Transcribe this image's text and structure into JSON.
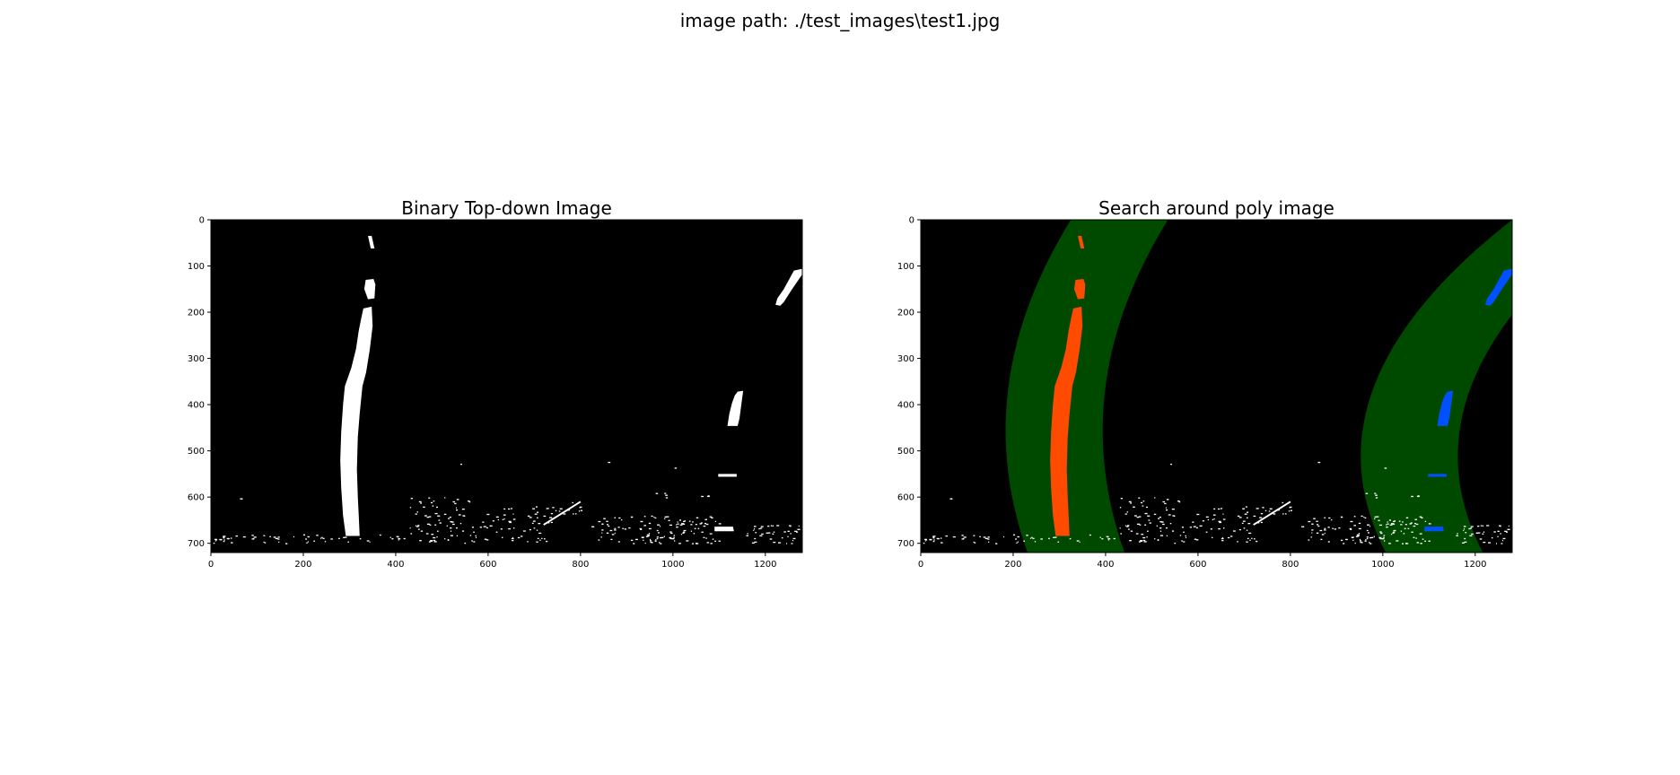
{
  "figure": {
    "suptitle": "image path: ./test_images\\test1.jpg"
  },
  "colors": {
    "background": "#000000",
    "lane_pixels": "#ffffff",
    "left_lane_pixels": "#ff4b00",
    "right_lane_pixels": "#0050ff",
    "search_region": "#004a00",
    "frame": "#000000",
    "figure_background": "#ffffff"
  },
  "chart_data": [
    {
      "type": "image",
      "title": "Binary Top-down Image",
      "xlim": [
        0,
        1280
      ],
      "ylim": [
        720,
        0
      ],
      "xticks": [
        0,
        200,
        400,
        600,
        800,
        1000,
        1200
      ],
      "yticks": [
        0,
        100,
        200,
        300,
        400,
        500,
        600,
        700
      ],
      "grid": false,
      "legend": "none",
      "overlays": []
    },
    {
      "type": "image",
      "title": "Search around poly image",
      "xlim": [
        0,
        1280
      ],
      "ylim": [
        720,
        0
      ],
      "xticks": [
        0,
        200,
        400,
        600,
        800,
        1000,
        1200
      ],
      "yticks": [
        0,
        100,
        200,
        300,
        400,
        500,
        600,
        700
      ],
      "grid": false,
      "legend": "none",
      "overlays": [
        "search-region-left",
        "search-region-right",
        "left-lane-pixels",
        "right-lane-pixels"
      ]
    }
  ]
}
